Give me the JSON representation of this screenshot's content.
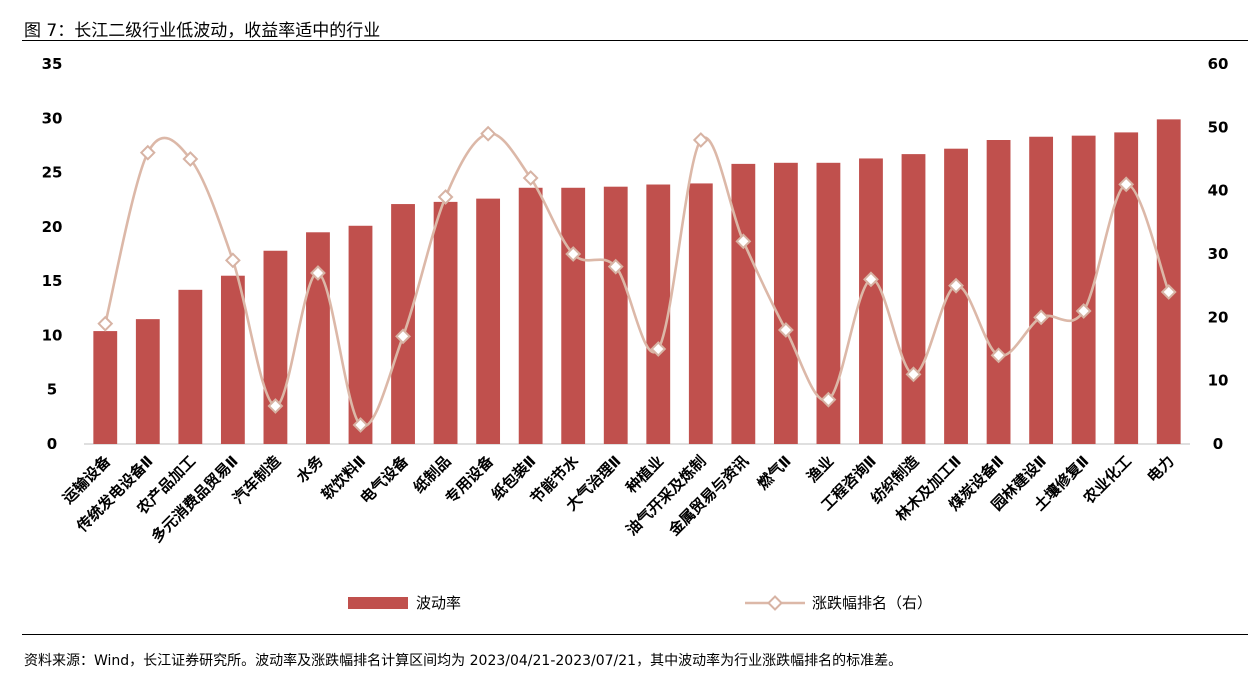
{
  "title": "图 7：长江二级行业低波动，收益率适中的行业",
  "source": "资料来源：Wind，长江证券研究所。波动率及涨跌幅排名计算区间均为 2023/04/21-2023/07/21，其中波动率为行业涨跌幅排名的标准差。",
  "colors": {
    "bar": "#c0504d",
    "line": "#dcb8a8",
    "marker_fill": "#ffffff",
    "marker_stroke": "#d7b3a4"
  },
  "chart_data": {
    "type": "bar",
    "categories": [
      "运输设备",
      "传统发电设备Ⅱ",
      "农产品加工",
      "多元消费品贸易Ⅱ",
      "汽车制造",
      "水务",
      "软饮料Ⅱ",
      "电气设备",
      "纸制品",
      "专用设备",
      "纸包装Ⅱ",
      "节能节水",
      "大气治理Ⅱ",
      "种植业",
      "油气开采及炼制",
      "金属贸易与资讯",
      "燃气Ⅱ",
      "渔业",
      "工程咨询Ⅱ",
      "纺织制造",
      "林木及加工Ⅱ",
      "煤炭设备Ⅱ",
      "园林建设Ⅱ",
      "土壤修复Ⅱ",
      "农业化工",
      "电力"
    ],
    "series": [
      {
        "name": "波动率",
        "type": "bar",
        "axis": "left",
        "values": [
          10.4,
          11.5,
          14.2,
          15.5,
          17.8,
          19.5,
          20.1,
          22.1,
          22.3,
          22.6,
          23.6,
          23.6,
          23.7,
          23.9,
          24.0,
          25.8,
          25.9,
          25.9,
          26.3,
          26.7,
          27.2,
          28.0,
          28.3,
          28.4,
          28.7,
          29.9
        ]
      },
      {
        "name": "涨跌幅排名（右）",
        "type": "line",
        "axis": "right",
        "values": [
          19,
          46,
          45,
          29,
          6,
          27,
          3,
          17,
          39,
          49,
          42,
          30,
          28,
          15,
          48,
          32,
          18,
          7,
          26,
          11,
          25,
          14,
          20,
          21,
          41,
          24
        ]
      }
    ],
    "y_left": {
      "min": 0,
      "max": 35,
      "ticks": [
        "0",
        "5",
        "10",
        "15",
        "20",
        "25",
        "30",
        "35"
      ]
    },
    "y_right": {
      "min": 0,
      "max": 60,
      "ticks": [
        "0",
        "10",
        "20",
        "30",
        "40",
        "50",
        "60"
      ]
    },
    "grid": false,
    "legend_position": "bottom"
  }
}
